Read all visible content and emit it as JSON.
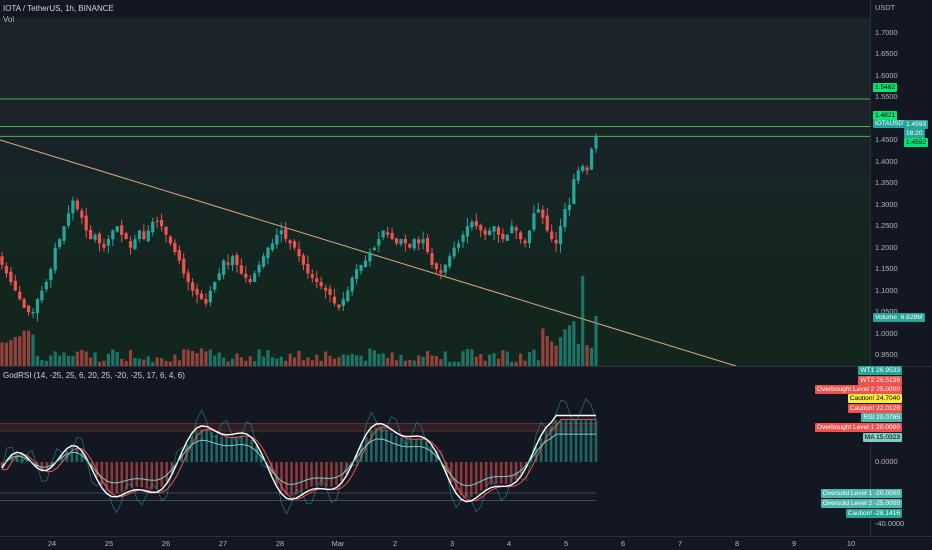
{
  "header": {
    "symbol_line": "IOTA / TetherUS, 1h, BINANCE",
    "volume_label": "Vol",
    "indicator_line": "GodRSI (14, -25, 25, 6, 20, 25, -20, -25, 17, 6, 4, 6)"
  },
  "price_axis": {
    "currency": "USDT",
    "ticks": [
      "1.7000",
      "1.6500",
      "1.6000",
      "1.5500",
      "1.5000",
      "1.4500",
      "1.4000",
      "1.3500",
      "1.3000",
      "1.2500",
      "1.2000",
      "1.1500",
      "1.1000",
      "1.0500",
      "1.0000",
      "0.9500"
    ]
  },
  "price_tags": {
    "level_a": "1.5462",
    "level_b": "1.4821",
    "current_symbol": "IOTAUSDT",
    "current_price": "1.4593",
    "countdown": "18:20",
    "level_c": "1.4552",
    "volume_label": "Volume",
    "volume_value": "6.828M"
  },
  "oscillator_axis": {
    "ticks": [
      "0.0000",
      "-40.0000"
    ],
    "tags": [
      {
        "label": "WT1",
        "value": "26.9533",
        "bg": "#26a69a",
        "fg": "#ffffff"
      },
      {
        "label": "WT2",
        "value": "26.5136",
        "bg": "#ef5350",
        "fg": "#ffffff"
      },
      {
        "label": "Overbought Level 2",
        "value": "25.0000",
        "bg": "#ef5350",
        "fg": "#ffffff"
      },
      {
        "label": "Caution!",
        "value": "24.7040",
        "bg": "#ffeb3b",
        "fg": "#000000"
      },
      {
        "label": "Caution!",
        "value": "22.0126",
        "bg": "#ef5350",
        "fg": "#ffffff"
      },
      {
        "label": "RSI",
        "value": "20.0765",
        "bg": "#4db6ac",
        "fg": "#ffffff"
      },
      {
        "label": "Overbought Level 1",
        "value": "20.0000",
        "bg": "#ef5350",
        "fg": "#ffffff"
      },
      {
        "label": "MA",
        "value": "15.0323",
        "bg": "#80cbc4",
        "fg": "#000000"
      }
    ],
    "lower_tags": [
      {
        "label": "Oversold Level 1",
        "value": "-20.0000",
        "bg": "#4db6ac",
        "fg": "#ffffff"
      },
      {
        "label": "Oversold Level 2",
        "value": "-25.0000",
        "bg": "#4db6ac",
        "fg": "#ffffff"
      },
      {
        "label": "Caution!",
        "value": "-28.1416",
        "bg": "#26a69a",
        "fg": "#ffffff"
      }
    ]
  },
  "time_axis": {
    "labels": [
      "24",
      "25",
      "26",
      "27",
      "28",
      "Mar",
      "2",
      "3",
      "4",
      "5",
      "6",
      "7",
      "8",
      "9",
      "10"
    ]
  },
  "colors": {
    "background": "#131722",
    "bull": "#26a69a",
    "bear": "#ef5350",
    "level_line": "#4caf50",
    "price_tag": "#00e676",
    "trendline": "#e0a882"
  },
  "chart_data": {
    "type": "candlestick",
    "interval": "1h",
    "ylim": [
      0.93,
      1.72
    ],
    "levels": [
      1.5462,
      1.4821,
      1.4593
    ],
    "closes_approx": [
      1.16,
      1.14,
      1.12,
      1.1,
      1.08,
      1.06,
      1.05,
      1.05,
      1.08,
      1.1,
      1.12,
      1.15,
      1.2,
      1.22,
      1.25,
      1.28,
      1.31,
      1.29,
      1.27,
      1.24,
      1.22,
      1.23,
      1.21,
      1.2,
      1.22,
      1.24,
      1.25,
      1.23,
      1.22,
      1.2,
      1.22,
      1.24,
      1.22,
      1.24,
      1.26,
      1.26,
      1.25,
      1.23,
      1.21,
      1.19,
      1.17,
      1.14,
      1.12,
      1.1,
      1.09,
      1.08,
      1.07,
      1.1,
      1.12,
      1.14,
      1.17,
      1.16,
      1.18,
      1.16,
      1.14,
      1.13,
      1.12,
      1.14,
      1.16,
      1.18,
      1.2,
      1.21,
      1.23,
      1.24,
      1.22,
      1.21,
      1.2,
      1.18,
      1.16,
      1.14,
      1.13,
      1.12,
      1.11,
      1.1,
      1.09,
      1.07,
      1.06,
      1.08,
      1.1,
      1.13,
      1.15,
      1.16,
      1.17,
      1.19,
      1.2,
      1.22,
      1.24,
      1.23,
      1.22,
      1.21,
      1.22,
      1.21,
      1.2,
      1.22,
      1.21,
      1.22,
      1.19,
      1.16,
      1.15,
      1.14,
      1.16,
      1.18,
      1.2,
      1.21,
      1.23,
      1.25,
      1.26,
      1.25,
      1.24,
      1.23,
      1.24,
      1.25,
      1.23,
      1.22,
      1.23,
      1.25,
      1.24,
      1.22,
      1.21,
      1.24,
      1.28,
      1.29,
      1.27,
      1.24,
      1.22,
      1.21,
      1.25,
      1.29,
      1.3,
      1.36,
      1.38,
      1.39,
      1.38,
      1.43,
      1.46
    ]
  }
}
